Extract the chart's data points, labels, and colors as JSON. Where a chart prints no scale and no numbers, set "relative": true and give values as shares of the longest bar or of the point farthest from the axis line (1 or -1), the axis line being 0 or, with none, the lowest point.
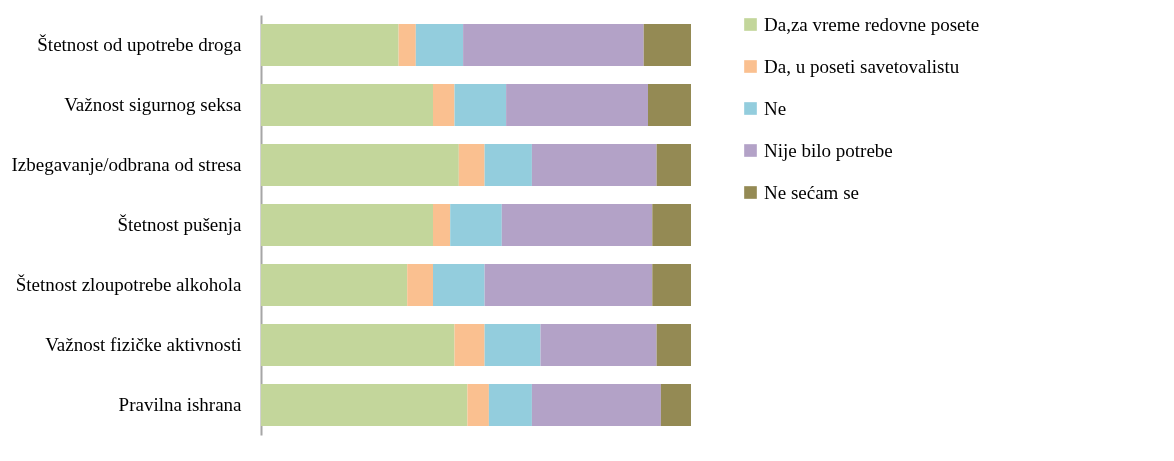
{
  "chart_data": {
    "type": "bar",
    "orientation": "horizontal",
    "stacked": true,
    "relative": true,
    "legend": "right",
    "categories": [
      "Štetnost od upotrebe droga",
      "Važnost sigurnog seksa",
      "Izbegavanje/odbrana od stresa",
      "Štetnost pušenja",
      "Štetnost zloupotrebe alkohola",
      "Važnost fizičke aktivnosti",
      "Pravilna ishrana"
    ],
    "series": [
      {
        "name": "Da,za vreme redovne posete",
        "color": "#c3d69b",
        "values": [
          0.32,
          0.4,
          0.46,
          0.4,
          0.34,
          0.45,
          0.48
        ]
      },
      {
        "name": "Da, u poseti savetovalistu",
        "color": "#fac090",
        "values": [
          0.04,
          0.05,
          0.06,
          0.04,
          0.06,
          0.07,
          0.05
        ]
      },
      {
        "name": "Ne",
        "color": "#93cddd",
        "values": [
          0.11,
          0.12,
          0.11,
          0.12,
          0.12,
          0.13,
          0.1
        ]
      },
      {
        "name": "Nije bilo potrebe",
        "color": "#b3a2c7",
        "values": [
          0.42,
          0.33,
          0.29,
          0.35,
          0.39,
          0.27,
          0.3
        ]
      },
      {
        "name": "Ne sećam se",
        "color": "#948a54",
        "values": [
          0.11,
          0.1,
          0.08,
          0.09,
          0.09,
          0.08,
          0.07
        ]
      }
    ]
  }
}
